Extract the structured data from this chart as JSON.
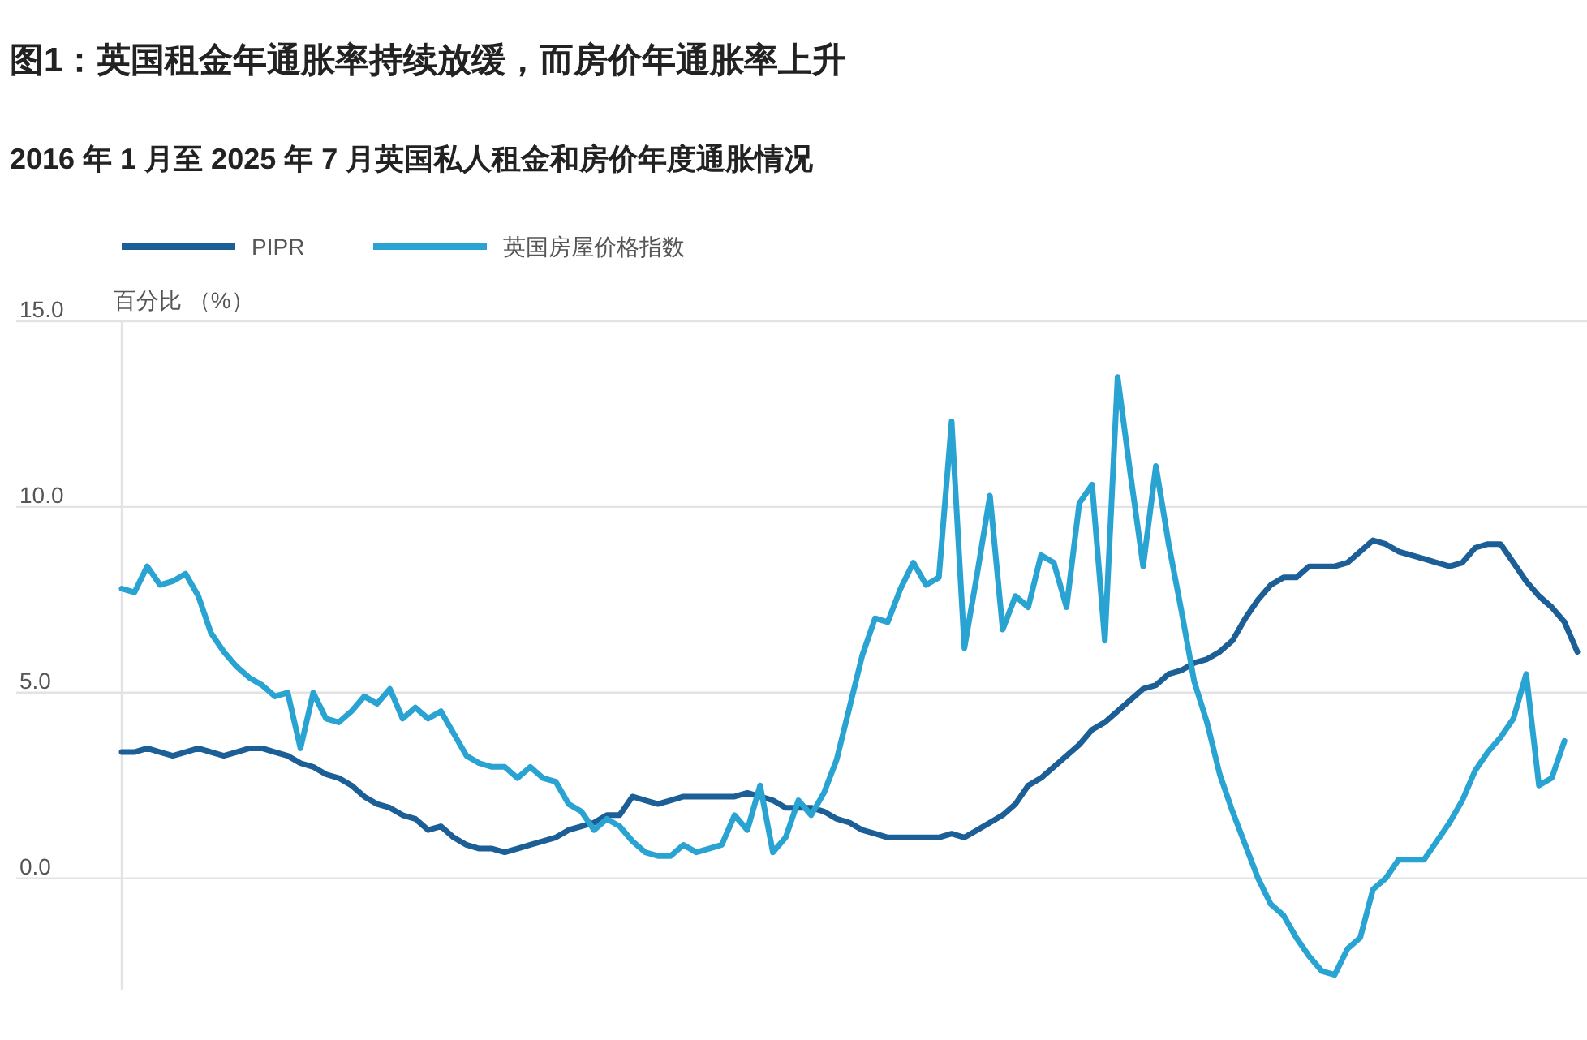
{
  "chart_data": {
    "type": "line",
    "title": "图1：英国租金年通胀率持续放缓，而房价年通胀率上升",
    "subtitle": "2016 年 1 月至 2025 年 7 月英国私人租金和房价年度通胀情况",
    "ylabel": "百分比 （%）",
    "categories": [
      null,
      null,
      null,
      null,
      null,
      null,
      null,
      null,
      null,
      null,
      null,
      null,
      null,
      null,
      null,
      null,
      null,
      null,
      null,
      null,
      null,
      null,
      null,
      null,
      null,
      null,
      null,
      null,
      null,
      null,
      null,
      null,
      null,
      null,
      null,
      null,
      null,
      null,
      null,
      null,
      null,
      null,
      null,
      null,
      null,
      null,
      null,
      null,
      null,
      null,
      null,
      null,
      null,
      null,
      null,
      null,
      null,
      null,
      null,
      null,
      null,
      null,
      null,
      null,
      null,
      null,
      null,
      null,
      null,
      null,
      null,
      null,
      null,
      null,
      null,
      null,
      null,
      null,
      null,
      null,
      null,
      null,
      null,
      null,
      null,
      null,
      null,
      null,
      null,
      null,
      null,
      null,
      null,
      null,
      null,
      null,
      null,
      null,
      null,
      null,
      null,
      null,
      null,
      null,
      null,
      null,
      null,
      null,
      null,
      null,
      null,
      null,
      null,
      null,
      null
    ],
    "series": [
      {
        "name": "PIPR",
        "color": "#1c5f97",
        "values": [
          3.4,
          3.4,
          3.5,
          3.4,
          3.3,
          3.4,
          3.5,
          3.4,
          3.3,
          3.4,
          3.5,
          3.5,
          3.4,
          3.3,
          3.1,
          3.0,
          2.8,
          2.7,
          2.5,
          2.2,
          2.0,
          1.9,
          1.7,
          1.6,
          1.3,
          1.4,
          1.1,
          0.9,
          0.8,
          0.8,
          0.7,
          0.8,
          0.9,
          1.0,
          1.1,
          1.3,
          1.4,
          1.5,
          1.7,
          1.7,
          2.2,
          2.1,
          2.0,
          2.1,
          2.2,
          2.2,
          2.2,
          2.2,
          2.2,
          2.3,
          2.2,
          2.1,
          1.9,
          1.9,
          1.9,
          1.8,
          1.6,
          1.5,
          1.3,
          1.2,
          1.1,
          1.1,
          1.1,
          1.1,
          1.1,
          1.2,
          1.1,
          1.3,
          1.5,
          1.7,
          2.0,
          2.5,
          2.7,
          3.0,
          3.3,
          3.6,
          4.0,
          4.2,
          4.5,
          4.8,
          5.1,
          5.2,
          5.5,
          5.6,
          5.8,
          5.9,
          6.1,
          6.4,
          7.0,
          7.5,
          7.9,
          8.1,
          8.1,
          8.4,
          8.4,
          8.4,
          8.5,
          8.8,
          9.1,
          9.0,
          8.8,
          8.7,
          8.6,
          8.5,
          8.4,
          8.5,
          8.9,
          9.0,
          9.0,
          8.5,
          8.0,
          7.6,
          7.3,
          6.9,
          6.1
        ]
      },
      {
        "name": "英国房屋价格指数",
        "color": "#29a3d2",
        "values": [
          7.8,
          7.7,
          8.4,
          7.9,
          8.0,
          8.2,
          7.6,
          6.6,
          6.1,
          5.7,
          5.4,
          5.2,
          4.9,
          5.0,
          3.5,
          5.0,
          4.3,
          4.2,
          4.5,
          4.9,
          4.7,
          5.1,
          4.3,
          4.6,
          4.3,
          4.5,
          3.9,
          3.3,
          3.1,
          3.0,
          3.0,
          2.7,
          3.0,
          2.7,
          2.6,
          2.0,
          1.8,
          1.3,
          1.6,
          1.4,
          1.0,
          0.7,
          0.6,
          0.6,
          0.9,
          0.7,
          0.8,
          0.9,
          1.7,
          1.3,
          2.5,
          0.7,
          1.1,
          2.1,
          1.7,
          2.3,
          3.2,
          4.6,
          6.0,
          7.0,
          6.9,
          7.8,
          8.5,
          7.9,
          8.1,
          12.3,
          6.2,
          8.2,
          10.3,
          6.7,
          7.6,
          7.3,
          8.7,
          8.5,
          7.3,
          10.1,
          10.6,
          6.4,
          13.5,
          10.9,
          8.4,
          11.1,
          9.0,
          7.2,
          5.3,
          4.2,
          2.8,
          1.8,
          0.9,
          0.0,
          -0.7,
          -1.0,
          -1.6,
          -2.1,
          -2.5,
          -2.6,
          -1.9,
          -1.6,
          -0.3,
          0.0,
          0.5,
          0.5,
          0.5,
          1.0,
          1.5,
          2.1,
          2.9,
          3.4,
          3.8,
          4.3,
          5.5,
          2.5,
          2.7,
          3.7,
          null
        ]
      }
    ],
    "ylim": [
      -3,
      15
    ],
    "yticks": [
      {
        "value": 0,
        "label": "0.0"
      },
      {
        "value": 5,
        "label": "5.0"
      },
      {
        "value": 10,
        "label": "10.0"
      },
      {
        "value": 15,
        "label": "15.0"
      }
    ],
    "grid": "y",
    "legend": "top left",
    "tick_labels": "y"
  }
}
